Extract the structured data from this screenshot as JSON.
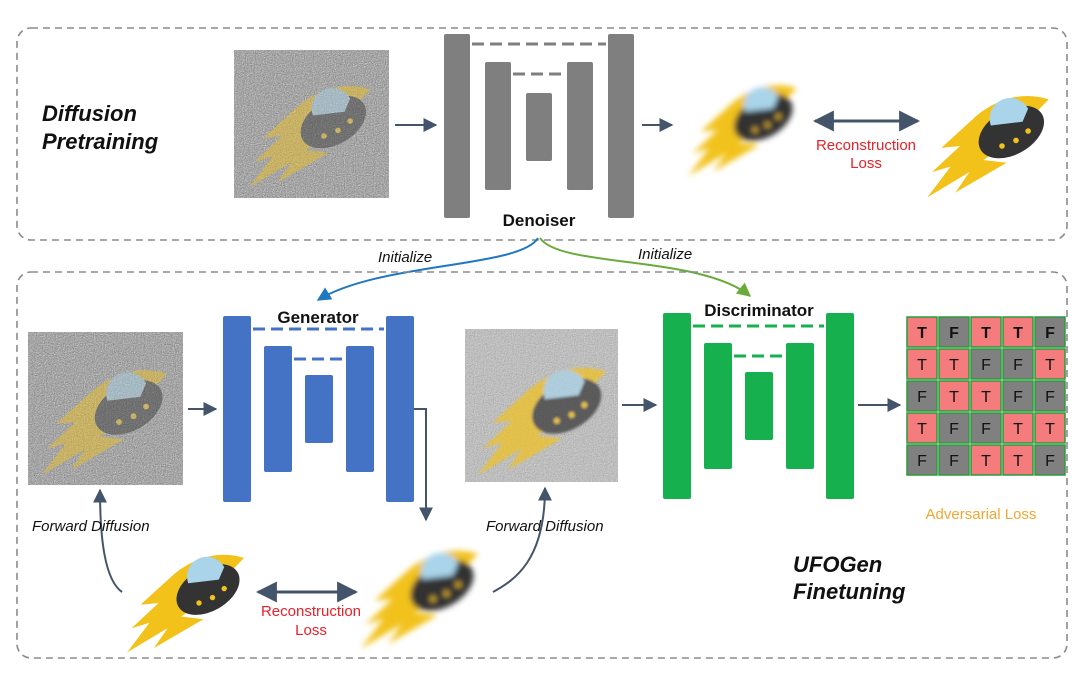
{
  "pretraining": {
    "title_line1": "Diffusion",
    "title_line2": "Pretraining",
    "denoiser_label": "Denoiser",
    "reconstruction_loss_line1": "Reconstruction",
    "reconstruction_loss_line2": "Loss"
  },
  "initialize": {
    "left_label": "Initialize",
    "right_label": "Initialize"
  },
  "finetuning": {
    "title_line1": "UFOGen",
    "title_line2": "Finetuning",
    "generator_label": "Generator",
    "discriminator_label": "Discriminator",
    "forward_diffusion_left": "Forward Diffusion",
    "forward_diffusion_right": "Forward Diffusion",
    "reconstruction_loss_line1": "Reconstruction",
    "reconstruction_loss_line2": "Loss",
    "adversarial_loss": "Adversarial Loss",
    "grid_rows": [
      [
        "T",
        "F",
        "T",
        "T",
        "F"
      ],
      [
        "T",
        "T",
        "F",
        "F",
        "T"
      ],
      [
        "F",
        "T",
        "T",
        "F",
        "F"
      ],
      [
        "T",
        "F",
        "F",
        "T",
        "T"
      ],
      [
        "F",
        "F",
        "T",
        "T",
        "F"
      ]
    ]
  },
  "colors": {
    "gray_unet": "#7f7f7f",
    "blue_unet": "#4472c4",
    "green_unet": "#17b04e",
    "init_blue": "#1f78c1",
    "init_green": "#6aaa3a",
    "red_text": "#e8212a",
    "orange_text": "#f0a830",
    "cell_true": "#f47c7c",
    "cell_false": "#808080"
  }
}
